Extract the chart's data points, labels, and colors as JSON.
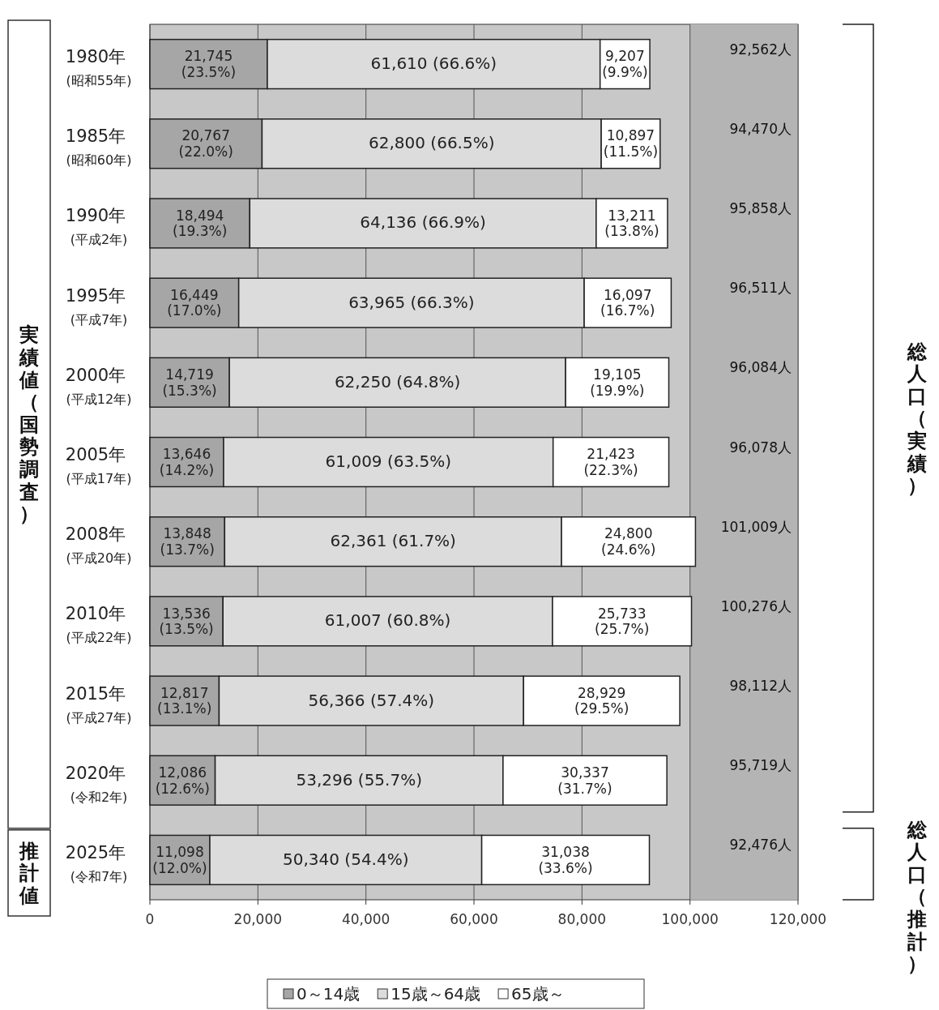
{
  "chart_data": {
    "type": "bar",
    "orientation": "horizontal",
    "stacked": true,
    "categories": [
      "1980年\n(昭和55年)",
      "1985年\n(昭和60年)",
      "1990年\n(平成2年)",
      "1995年\n(平成7年)",
      "2000年\n(平成12年)",
      "2005年\n(平成17年)",
      "2008年\n(平成20年)",
      "2010年\n(平成22年)",
      "2015年\n(平成27年)",
      "2020年\n(令和2年)",
      "2025年\n(令和7年)"
    ],
    "series": [
      {
        "name": "0～14歳",
        "color": "#a6a6a6",
        "values": [
          21745,
          20767,
          18494,
          16449,
          14719,
          13646,
          13848,
          13536,
          12817,
          12086,
          11098
        ],
        "value_labels": [
          "21,745\n(23.5%)",
          "20,767\n(22.0%)",
          "18,494\n(19.3%)",
          "16,449\n(17.0%)",
          "14,719\n(15.3%)",
          "13,646\n(14.2%)",
          "13,848\n(13.7%)",
          "13,536\n(13.5%)",
          "12,817\n(13.1%)",
          "12,086\n(12.6%)",
          "11,098\n(12.0%)"
        ]
      },
      {
        "name": "15歳～64歳",
        "color": "#dcdcdc",
        "values": [
          61610,
          62800,
          64136,
          63965,
          62250,
          61009,
          62361,
          61007,
          56366,
          53296,
          50340
        ],
        "value_labels": [
          "61,610 (66.6%)",
          "62,800 (66.5%)",
          "64,136 (66.9%)",
          "63,965 (66.3%)",
          "62,250 (64.8%)",
          "61,009 (63.5%)",
          "62,361 (61.7%)",
          "61,007 (60.8%)",
          "56,366 (57.4%)",
          "53,296 (55.7%)",
          "50,340 (54.4%)"
        ]
      },
      {
        "name": "65歳～",
        "color": "#ffffff",
        "values": [
          9207,
          10897,
          13211,
          16097,
          19105,
          21423,
          24800,
          25733,
          28929,
          30337,
          31038
        ],
        "value_labels": [
          "9,207\n(9.9%)",
          "10,897\n(11.5%)",
          "13,211\n(13.8%)",
          "16,097\n(16.7%)",
          "19,105\n(19.9%)",
          "21,423\n(22.3%)",
          "24,800\n(24.6%)",
          "25,733\n(25.7%)",
          "28,929\n(29.5%)",
          "30,337\n(31.7%)",
          "31,038\n(33.6%)"
        ]
      }
    ],
    "xlim": [
      0,
      120000
    ],
    "xticks": [
      0,
      {
        "value": 20000,
        "label": "20,000"
      },
      {
        "value": 40000,
        "label": "40,000"
      },
      {
        "value": 60000,
        "label": "60,000"
      },
      {
        "value": 80000,
        "label": "80,000"
      },
      {
        "value": 100000,
        "label": "100,000"
      },
      {
        "value": 120000,
        "label": "120,000"
      }
    ],
    "grid": "x",
    "legend": "bottom",
    "annotations": [
      "実績値（国勢調査）",
      "推計値",
      "総人口（実績）",
      "総人口（推計）",
      "92,562人",
      "94,470人",
      "95,858人",
      "96,511人",
      "96,084人",
      "96,078人",
      "101,009人",
      "100,276人",
      "98,112人",
      "95,719人",
      "92,476人"
    ]
  }
}
